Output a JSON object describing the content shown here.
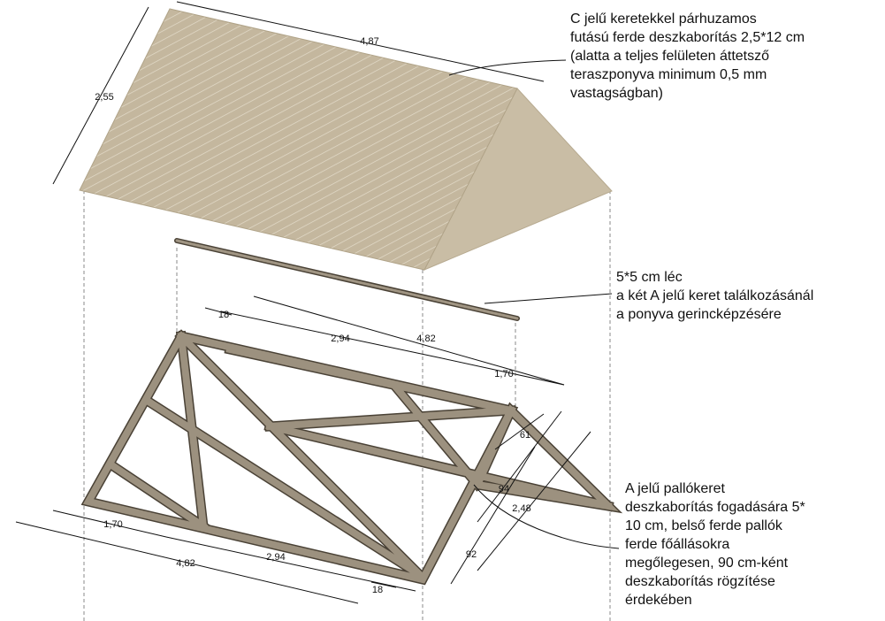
{
  "annotations": [
    {
      "lines": [
        "C jelű keretekkel párhuzamos",
        "futású ferde deszkaborítás 2,5*12 cm",
        "(alatta a teljes felületen áttetsző",
        "teraszponyva minimum 0,5 mm",
        "vastagságban)"
      ]
    },
    {
      "lines": [
        "5*5 cm léc",
        "a két A jelű keret találkozásánál",
        "a ponyva gerincképzésére"
      ]
    },
    {
      "lines": [
        "A jelű pallókeret",
        "deszkaborítás fogadására 5*",
        "10 cm, belső ferde pallók",
        "ferde főállásokra",
        "megőlegesen, 90 cm-ként",
        "deszkaborítás rögzítése",
        "érdekében"
      ]
    }
  ],
  "dimensions": [
    "4,87",
    "2,55",
    "18",
    "2,94",
    "4,82",
    "1,70",
    "61",
    "94",
    "2,48",
    "92",
    "1,70",
    "2,94",
    "4,82",
    "18"
  ]
}
